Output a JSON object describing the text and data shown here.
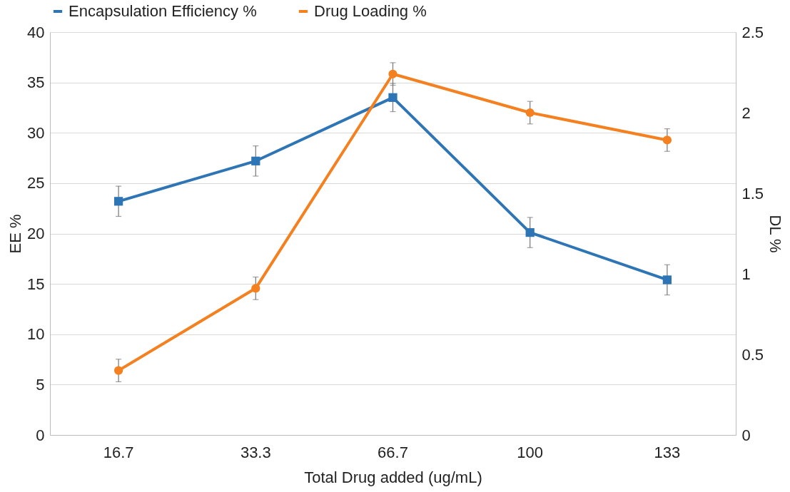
{
  "chart_data": {
    "type": "line",
    "xlabel": "Total Drug added (ug/mL)",
    "ylabel": "EE %",
    "y2label": "DL %",
    "categories": [
      "16.7",
      "33.3",
      "66.7",
      "100",
      "133"
    ],
    "series": [
      {
        "name": "Encapsulation Efficiency %",
        "color": "#2e75b6",
        "marker": "square",
        "values": [
          23.2,
          27.2,
          33.5,
          20.1,
          15.4
        ],
        "errors": [
          1.5,
          1.5,
          1.4,
          1.5,
          1.5
        ]
      },
      {
        "name": "Drug Loading %",
        "color": "#f4801f",
        "marker": "circle",
        "axis": "y2",
        "values": [
          0.4,
          0.91,
          2.24,
          2.0,
          1.83
        ],
        "errors": [
          0.07,
          0.07,
          0.07,
          0.07,
          0.07
        ]
      }
    ],
    "ylim": [
      0,
      40
    ],
    "yticks": [
      0,
      5,
      10,
      15,
      20,
      25,
      30,
      35,
      40
    ],
    "y2lim": [
      0,
      2.5
    ],
    "y2ticks": [
      0,
      0.5,
      1,
      1.5,
      2,
      2.5
    ],
    "grid": "y",
    "legend": "top",
    "line_style": "solid"
  }
}
